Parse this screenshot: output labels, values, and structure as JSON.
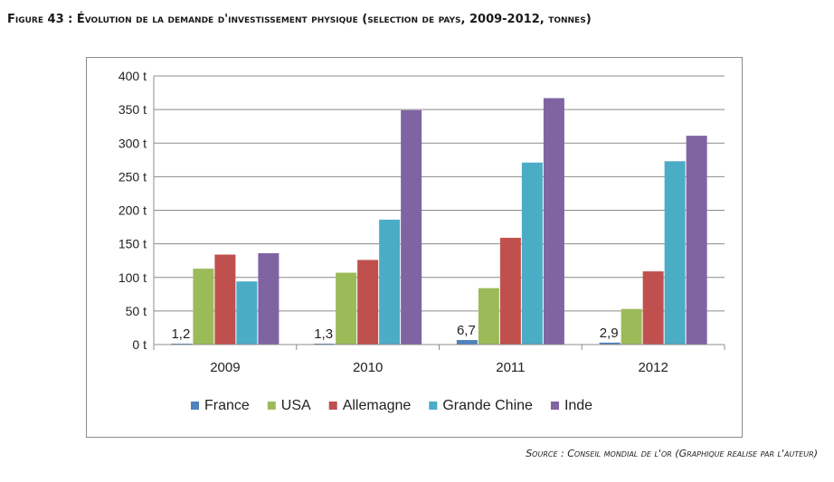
{
  "figure": {
    "title": "Figure 43 : Évolution de la demande d'investissement physique (selection de pays, 2009-2012, tonnes)",
    "source": "Source : Conseil mondial de l'or (Graphique realise par l'auteur)"
  },
  "chart_data": {
    "type": "bar",
    "title": "",
    "xlabel": "",
    "ylabel": "",
    "categories": [
      "2009",
      "2010",
      "2011",
      "2012"
    ],
    "ylim": [
      0,
      400
    ],
    "y_ticks": [
      0,
      50,
      100,
      150,
      200,
      250,
      300,
      350,
      400
    ],
    "y_tick_labels": [
      "0 t",
      "50 t",
      "100 t",
      "150 t",
      "200 t",
      "250 t",
      "300 t",
      "350 t",
      "400 t"
    ],
    "grid": "horizontal",
    "legend_position": "bottom",
    "series": [
      {
        "name": "France",
        "color": "#4f81bd",
        "values": [
          1.2,
          1.3,
          6.7,
          2.9
        ],
        "data_labels": [
          "1,2",
          "1,3",
          "6,7",
          "2,9"
        ]
      },
      {
        "name": "USA",
        "color": "#9bbb59",
        "values": [
          113,
          107,
          84,
          53
        ]
      },
      {
        "name": "Allemagne",
        "color": "#c0504d",
        "values": [
          134,
          126,
          159,
          109
        ]
      },
      {
        "name": "Grande Chine",
        "color": "#4bacc6",
        "values": [
          94,
          186,
          271,
          273
        ]
      },
      {
        "name": "Inde",
        "color": "#8064a2",
        "values": [
          136,
          349,
          367,
          311
        ]
      }
    ]
  }
}
